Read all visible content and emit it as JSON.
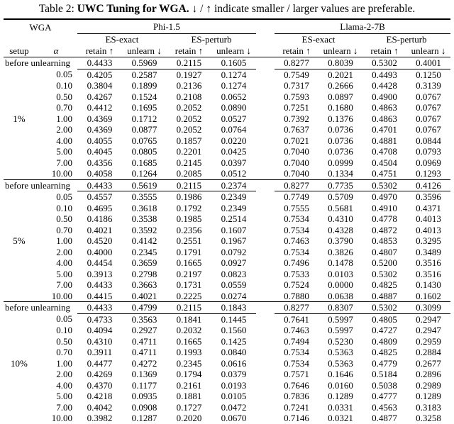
{
  "caption": {
    "prefix": "Table 2: ",
    "bold": "UWC Tuning for WGA.",
    "rest": " ↓ / ↑ indicate smaller / larger values are preferable."
  },
  "header": {
    "wga": "WGA",
    "setup": "setup",
    "alpha": "α",
    "models": [
      "Phi-1.5",
      "Llama-2-7B"
    ],
    "metric_groups": [
      "ES-exact",
      "ES-perturb"
    ],
    "retain": "retain ↑",
    "unlearn": "unlearn ↓"
  },
  "groups": [
    {
      "setup": "1%",
      "before_label": "before unlearning",
      "before": [
        "0.4433",
        "0.5969",
        "0.2115",
        "0.1605",
        "0.8277",
        "0.8039",
        "0.5302",
        "0.4001"
      ],
      "rows": [
        {
          "alpha": "0.05",
          "values": [
            "0.4205",
            "0.2587",
            "0.1927",
            "0.1274",
            "0.7549",
            "0.2021",
            "0.4493",
            "0.1250"
          ]
        },
        {
          "alpha": "0.10",
          "values": [
            "0.3804",
            "0.1899",
            "0.2136",
            "0.1274",
            "0.7317",
            "0.2666",
            "0.4428",
            "0.3139"
          ]
        },
        {
          "alpha": "0.50",
          "values": [
            "0.4267",
            "0.1524",
            "0.2108",
            "0.0652",
            "0.7593",
            "0.0897",
            "0.4900",
            "0.0767"
          ]
        },
        {
          "alpha": "0.70",
          "values": [
            "0.4412",
            "0.1695",
            "0.2052",
            "0.0890",
            "0.7251",
            "0.1680",
            "0.4863",
            "0.0767"
          ]
        },
        {
          "alpha": "1.00",
          "values": [
            "0.4369",
            "0.1712",
            "0.2052",
            "0.0527",
            "0.7392",
            "0.1376",
            "0.4863",
            "0.0767"
          ]
        },
        {
          "alpha": "2.00",
          "values": [
            "0.4369",
            "0.0877",
            "0.2052",
            "0.0764",
            "0.7637",
            "0.0736",
            "0.4701",
            "0.0767"
          ]
        },
        {
          "alpha": "4.00",
          "values": [
            "0.4055",
            "0.0765",
            "0.1857",
            "0.0220",
            "0.7021",
            "0.0736",
            "0.4881",
            "0.0844"
          ]
        },
        {
          "alpha": "5.00",
          "values": [
            "0.4045",
            "0.0805",
            "0.2201",
            "0.0425",
            "0.7040",
            "0.0736",
            "0.4708",
            "0.0793"
          ]
        },
        {
          "alpha": "7.00",
          "values": [
            "0.4356",
            "0.1685",
            "0.2145",
            "0.0397",
            "0.7040",
            "0.0999",
            "0.4504",
            "0.0969"
          ]
        },
        {
          "alpha": "10.00",
          "values": [
            "0.4058",
            "0.1264",
            "0.2085",
            "0.0512",
            "0.7040",
            "0.1334",
            "0.4751",
            "0.1293"
          ]
        }
      ]
    },
    {
      "setup": "5%",
      "before_label": "before unlearning",
      "before": [
        "0.4433",
        "0.5619",
        "0.2115",
        "0.2374",
        "0.8277",
        "0.7735",
        "0.5302",
        "0.4126"
      ],
      "rows": [
        {
          "alpha": "0.05",
          "values": [
            "0.4557",
            "0.3555",
            "0.1986",
            "0.2349",
            "0.7749",
            "0.5709",
            "0.4970",
            "0.3596"
          ]
        },
        {
          "alpha": "0.10",
          "values": [
            "0.4695",
            "0.3618",
            "0.1792",
            "0.2349",
            "0.7555",
            "0.5681",
            "0.4910",
            "0.4371"
          ]
        },
        {
          "alpha": "0.50",
          "values": [
            "0.4186",
            "0.3538",
            "0.1985",
            "0.2514",
            "0.7534",
            "0.4310",
            "0.4778",
            "0.4013"
          ]
        },
        {
          "alpha": "0.70",
          "values": [
            "0.4021",
            "0.3592",
            "0.2356",
            "0.1607",
            "0.7534",
            "0.4328",
            "0.4872",
            "0.4013"
          ]
        },
        {
          "alpha": "1.00",
          "values": [
            "0.4520",
            "0.4142",
            "0.2551",
            "0.1967",
            "0.7463",
            "0.3790",
            "0.4853",
            "0.3295"
          ]
        },
        {
          "alpha": "2.00",
          "values": [
            "0.4000",
            "0.2345",
            "0.1791",
            "0.0792",
            "0.7534",
            "0.3826",
            "0.4807",
            "0.3489"
          ]
        },
        {
          "alpha": "4.00",
          "values": [
            "0.4454",
            "0.3659",
            "0.1665",
            "0.0927",
            "0.7496",
            "0.1478",
            "0.5200",
            "0.3516"
          ]
        },
        {
          "alpha": "5.00",
          "values": [
            "0.3913",
            "0.2798",
            "0.2197",
            "0.0823",
            "0.7533",
            "0.0103",
            "0.5302",
            "0.3516"
          ]
        },
        {
          "alpha": "7.00",
          "values": [
            "0.4433",
            "0.3663",
            "0.1731",
            "0.0559",
            "0.7524",
            "0.0000",
            "0.4825",
            "0.1430"
          ]
        },
        {
          "alpha": "10.00",
          "values": [
            "0.4415",
            "0.4021",
            "0.2225",
            "0.0274",
            "0.7880",
            "0.0638",
            "0.4887",
            "0.1602"
          ]
        }
      ]
    },
    {
      "setup": "10%",
      "before_label": "before unlearning",
      "before": [
        "0.4433",
        "0.4799",
        "0.2115",
        "0.1843",
        "0.8277",
        "0.8307",
        "0.5302",
        "0.3099"
      ],
      "rows": [
        {
          "alpha": "0.05",
          "values": [
            "0.4733",
            "0.3563",
            "0.1841",
            "0.1445",
            "0.7641",
            "0.5997",
            "0.4805",
            "0.2947"
          ]
        },
        {
          "alpha": "0.10",
          "values": [
            "0.4094",
            "0.2927",
            "0.2032",
            "0.1560",
            "0.7463",
            "0.5997",
            "0.4727",
            "0.2947"
          ]
        },
        {
          "alpha": "0.50",
          "values": [
            "0.4310",
            "0.4711",
            "0.1665",
            "0.1425",
            "0.7494",
            "0.5230",
            "0.4809",
            "0.2959"
          ]
        },
        {
          "alpha": "0.70",
          "values": [
            "0.3911",
            "0.4711",
            "0.1993",
            "0.0840",
            "0.7534",
            "0.5363",
            "0.4825",
            "0.2884"
          ]
        },
        {
          "alpha": "1.00",
          "values": [
            "0.4477",
            "0.4272",
            "0.2345",
            "0.0616",
            "0.7534",
            "0.5363",
            "0.4779",
            "0.2677"
          ]
        },
        {
          "alpha": "2.00",
          "values": [
            "0.4269",
            "0.1369",
            "0.1794",
            "0.0379",
            "0.7571",
            "0.1646",
            "0.5184",
            "0.2896"
          ]
        },
        {
          "alpha": "4.00",
          "values": [
            "0.4370",
            "0.1177",
            "0.2161",
            "0.0193",
            "0.7646",
            "0.0160",
            "0.5038",
            "0.2989"
          ]
        },
        {
          "alpha": "5.00",
          "values": [
            "0.4218",
            "0.0935",
            "0.1881",
            "0.0105",
            "0.7836",
            "0.1289",
            "0.4777",
            "0.1289"
          ]
        },
        {
          "alpha": "7.00",
          "values": [
            "0.4042",
            "0.0908",
            "0.1727",
            "0.0472",
            "0.7241",
            "0.0331",
            "0.4563",
            "0.3183"
          ]
        },
        {
          "alpha": "10.00",
          "values": [
            "0.3982",
            "0.1287",
            "0.2020",
            "0.0670",
            "0.7146",
            "0.0321",
            "0.4877",
            "0.3258"
          ]
        }
      ]
    }
  ]
}
